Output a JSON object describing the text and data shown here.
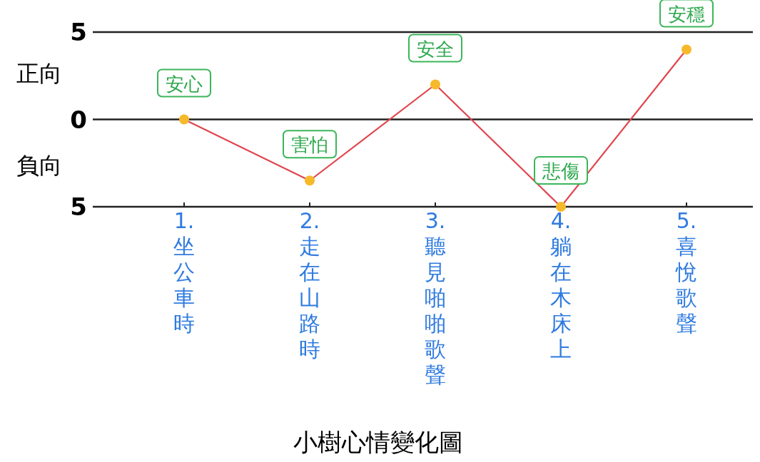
{
  "chart_data": {
    "type": "line",
    "title": "小樹心情變化圖",
    "categories": [
      "1.坐公車時",
      "2.走在山路時",
      "3.聽見啪啪歌聲",
      "4.躺在木床上",
      "5.喜悅歌聲"
    ],
    "values": [
      0,
      -3.5,
      2,
      -5,
      4
    ],
    "color": "#e0464f",
    "marker": "circle",
    "ylim": [
      -5,
      5
    ],
    "yticks": [
      {
        "value": -5,
        "label": "5"
      },
      0,
      5
    ],
    "grid": "y",
    "annotations": [
      "正向",
      "負向",
      {
        "text": "安心",
        "x": "1.坐公車時",
        "y": 0
      },
      {
        "text": "害怕",
        "x": "2.走在山路時",
        "y": -3.5
      },
      {
        "text": "安全",
        "x": "3.聽見啪啪歌聲",
        "y": 2
      },
      {
        "text": "悲傷",
        "x": "4.躺在木床上",
        "y": -5
      },
      {
        "text": "安穩",
        "x": "5.喜悅歌聲",
        "y": 4
      }
    ]
  }
}
